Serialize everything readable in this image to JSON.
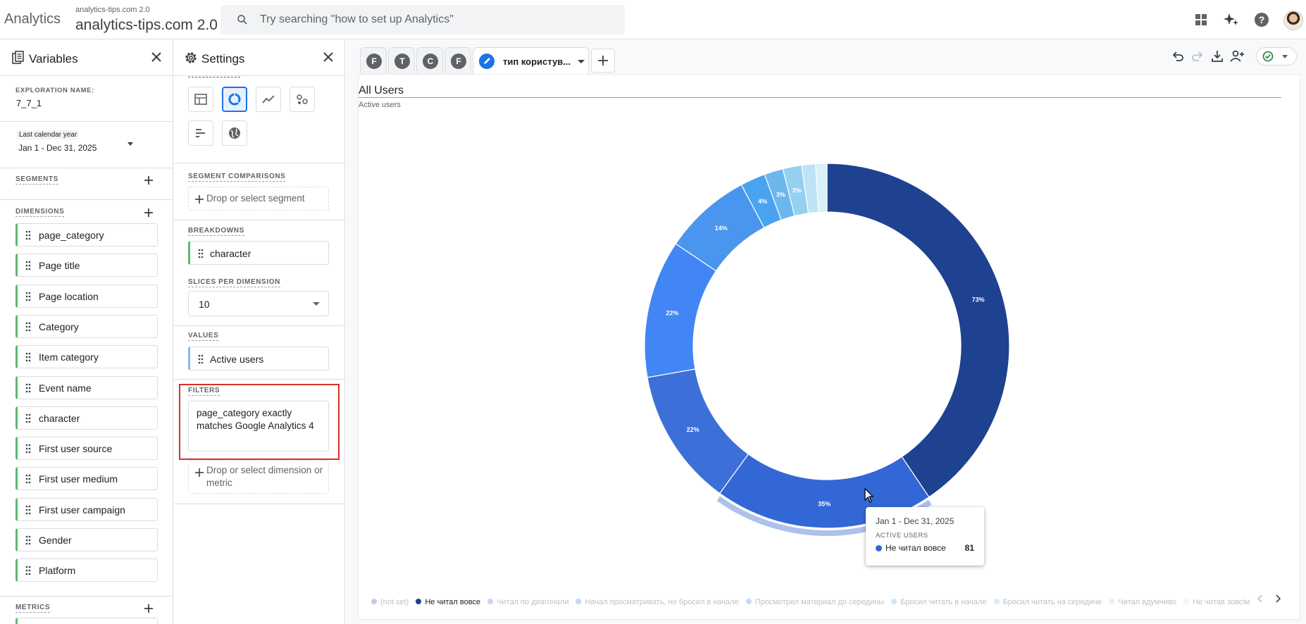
{
  "header": {
    "app_name": "Analytics",
    "account_small": "analytics-tips.com 2.0",
    "account_big": "analytics-tips.com 2.0",
    "search_placeholder": "Try searching \"how to set up Analytics\""
  },
  "variables": {
    "title": "Variables",
    "exploration_name_label": "EXPLORATION NAME:",
    "exploration_name": "7_7_1",
    "date_label": "Last calendar year",
    "date_range": "Jan 1 - Dec 31, 2025",
    "segments_label": "SEGMENTS",
    "dimensions_label": "DIMENSIONS",
    "dimensions": [
      "page_category",
      "Page title",
      "Page location",
      "Category",
      "Item category",
      "Event name",
      "character",
      "First user source",
      "First user medium",
      "First user campaign",
      "Gender",
      "Platform"
    ],
    "metrics_label": "METRICS"
  },
  "settings": {
    "title": "Settings",
    "segment_comparisons_label": "SEGMENT COMPARISONS",
    "segment_drop": "Drop or select segment",
    "breakdowns_label": "BREAKDOWNS",
    "breakdown_item": "character",
    "slices_label": "SLICES PER DIMENSION",
    "slices_value": "10",
    "values_label": "VALUES",
    "value_item": "Active users",
    "filters_label": "FILTERS",
    "filter_text": "page_category exactly matches Google Analytics 4",
    "filter_drop": "Drop or select dimension or metric"
  },
  "tabs": [
    {
      "letter": "F"
    },
    {
      "letter": "T"
    },
    {
      "letter": "C"
    },
    {
      "letter": "F"
    },
    {
      "label": "тип користув...",
      "active": true
    }
  ],
  "chart_data": {
    "type": "pie",
    "title": "All Users",
    "subtitle": "Active users",
    "slices": [
      {
        "label": "Не читал вовсе",
        "value": 81,
        "percent_label": "73%",
        "color": "#1e428f"
      },
      {
        "label": "",
        "percent_label": "35%",
        "color": "#3367d6"
      },
      {
        "label": "",
        "percent_label": "22%",
        "color": "#3d6fd9"
      },
      {
        "label": "",
        "percent_label": "22%",
        "color": "#4285f4"
      },
      {
        "label": "",
        "percent_label": "14%",
        "color": "#4a96ee"
      },
      {
        "label": "",
        "percent_label": "4%",
        "color": "#4aa3f0"
      },
      {
        "label": "",
        "percent_label": "3%",
        "color": "#6cb8ee"
      },
      {
        "label": "",
        "percent_label": "3%",
        "color": "#94d1ef"
      },
      {
        "label": "",
        "percent_label": "",
        "color": "#bde3f5"
      },
      {
        "label": "",
        "percent_label": "",
        "color": "#d9f0f8"
      }
    ],
    "legend": [
      {
        "label": "(not set)",
        "color": "#c5cbe8",
        "active": false
      },
      {
        "label": "Не читал вовсе",
        "color": "#1e428f",
        "active": true
      },
      {
        "label": "Читал по диагонали",
        "color": "#c6d6f5",
        "active": false
      },
      {
        "label": "Начал просматривать, но бросил в начале",
        "color": "#c6d6f5",
        "active": false
      },
      {
        "label": "Просмотрел материал до середины",
        "color": "#c6dcf8",
        "active": false
      },
      {
        "label": "Бросил читать в начале",
        "color": "#cfe6fa",
        "active": false
      },
      {
        "label": "Бросил читать на середине",
        "color": "#d6ecfb",
        "active": false
      },
      {
        "label": "Читал вдумчиво",
        "color": "#e3f2fb",
        "active": false
      },
      {
        "label": "Не читав зовсім",
        "color": "#eef6fb",
        "active": false
      }
    ]
  },
  "tooltip": {
    "date": "Jan 1 - Dec 31, 2025",
    "metric": "ACTIVE USERS",
    "name": "Не читал вовсе",
    "value": "81"
  }
}
